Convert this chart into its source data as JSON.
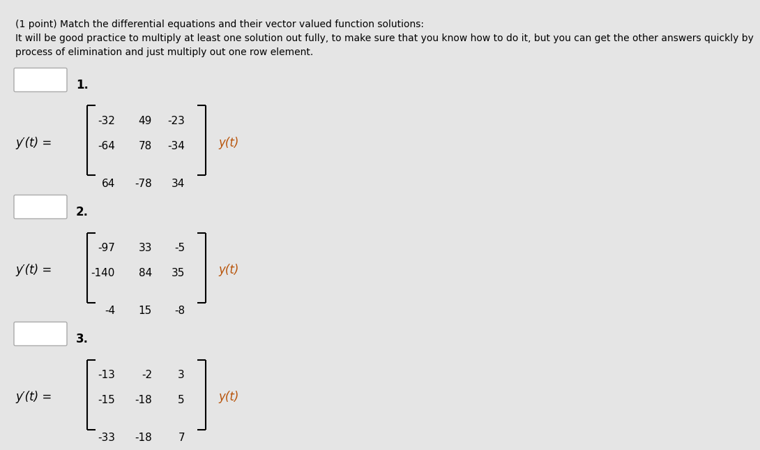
{
  "background_color": "#e5e5e5",
  "title_line1": "(1 point) Match the differential equations and their vector valued function solutions:",
  "title_line2": "It will be good practice to multiply at least one solution out fully, to make sure that you know how to do it, but you can get the other answers quickly by",
  "title_line3": "process of elimination and just multiply out one row element.",
  "problems": [
    {
      "number": "1.",
      "matrix": [
        [
          "-32",
          "49",
          "-23"
        ],
        [
          "-64",
          "78",
          "-34"
        ],
        [
          "64",
          "-78",
          "34"
        ]
      ]
    },
    {
      "number": "2.",
      "matrix": [
        [
          "-97",
          "33",
          "-5"
        ],
        [
          "-140",
          "84",
          "35"
        ],
        [
          "-4",
          "15",
          "-8"
        ]
      ]
    },
    {
      "number": "3.",
      "matrix": [
        [
          "-13",
          "-2",
          "3"
        ],
        [
          "-15",
          "-18",
          "5"
        ],
        [
          "-33",
          "-18",
          "7"
        ]
      ]
    }
  ],
  "text_color": "#000000",
  "orange_color": "#b8540a",
  "label_left": "y′(t) =",
  "label_right": "y(t)",
  "header_fontsize": 10,
  "number_fontsize": 12,
  "matrix_fontsize": 11,
  "eq_fontsize": 12
}
